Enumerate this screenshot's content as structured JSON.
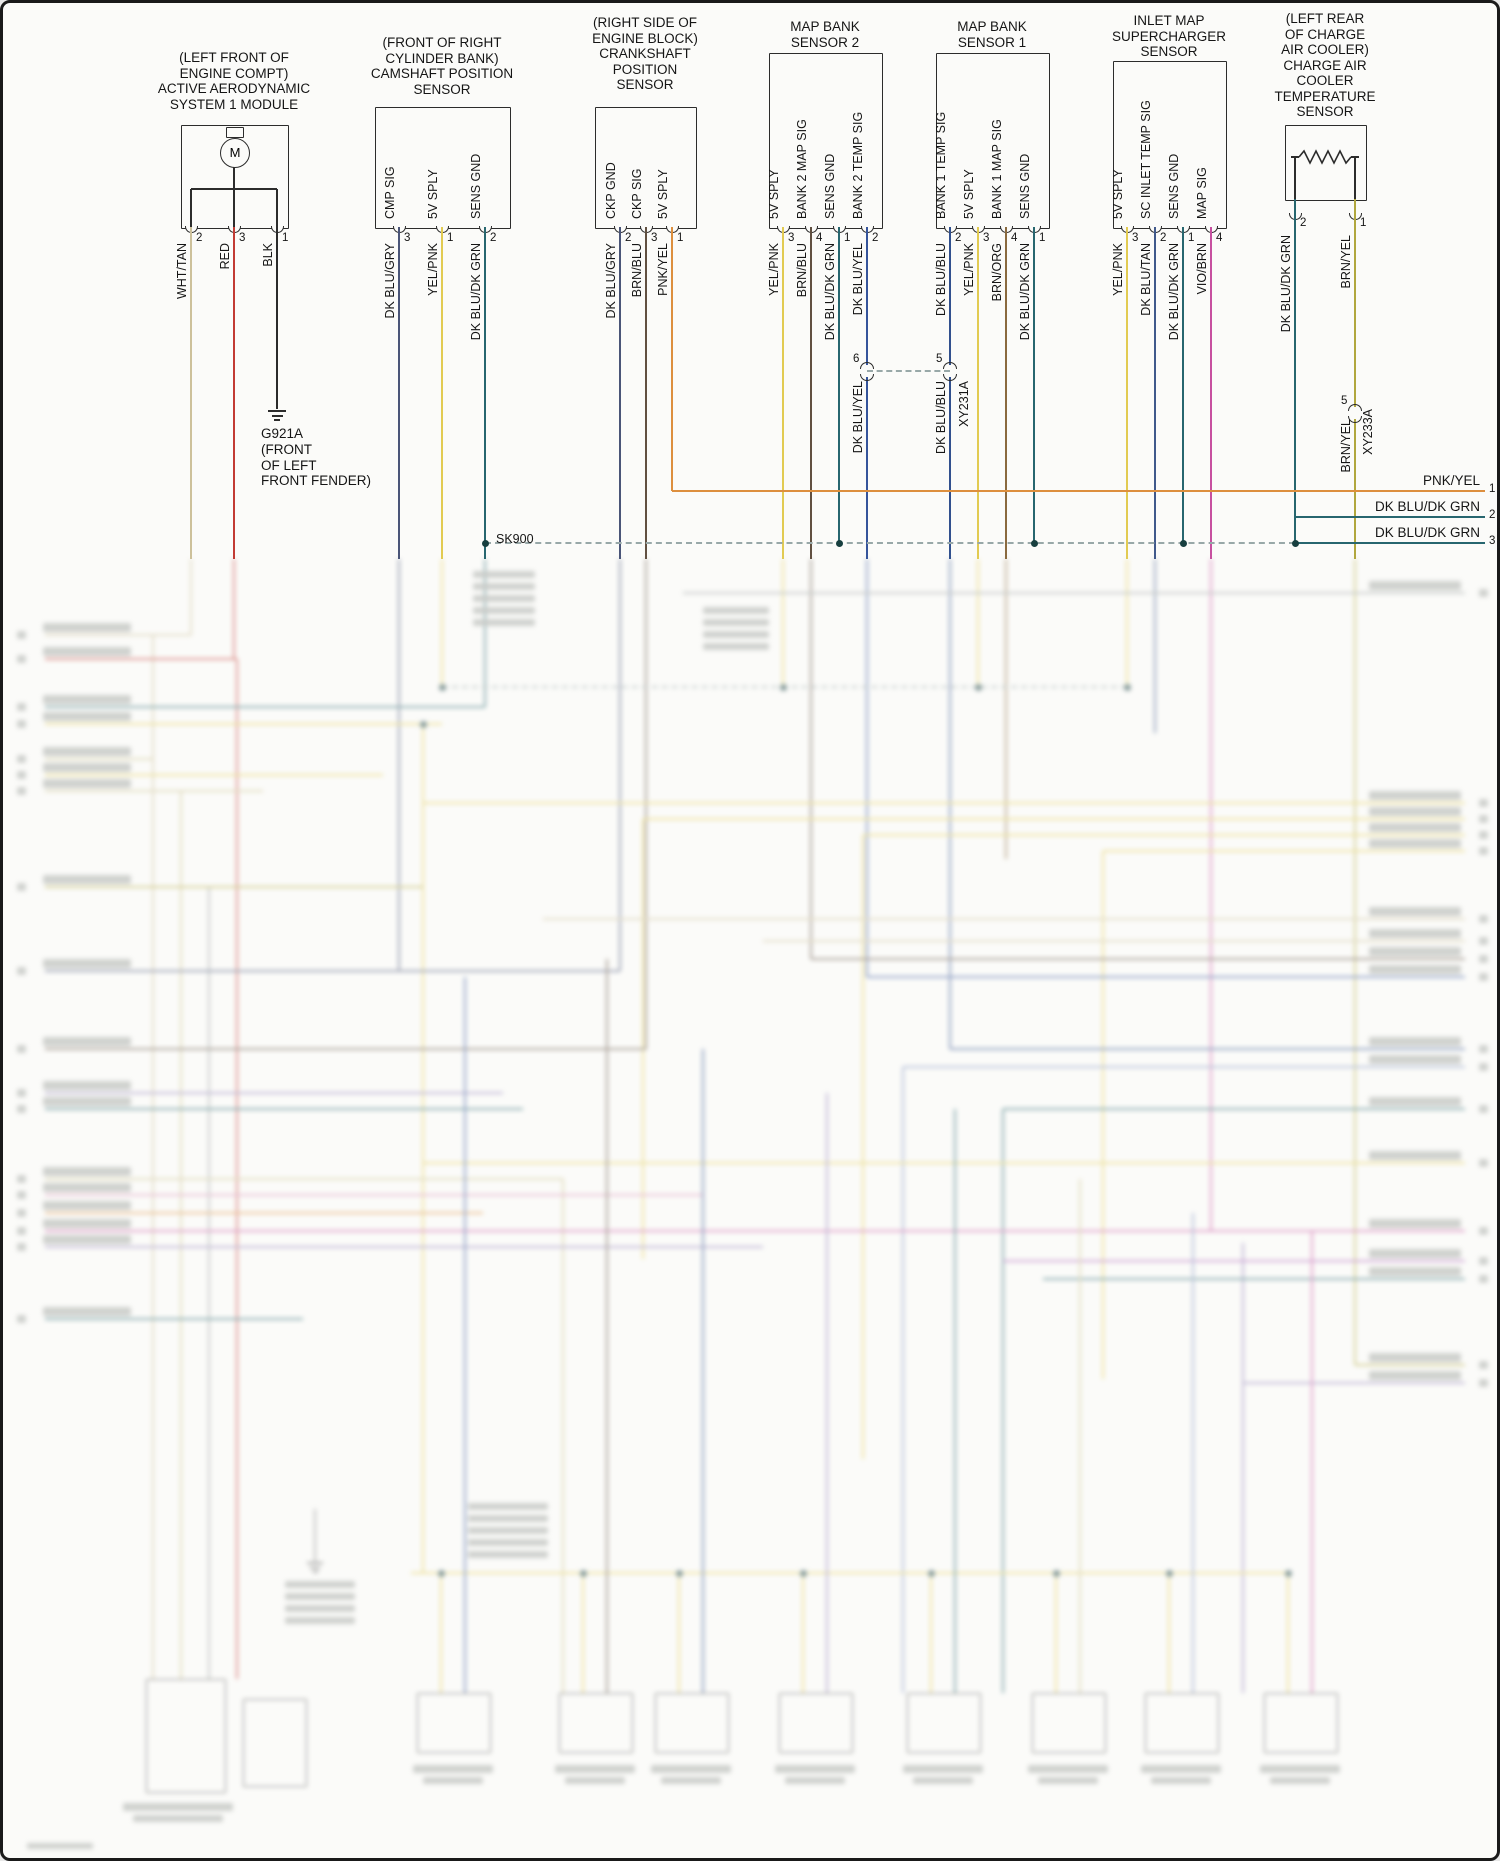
{
  "colors": {
    "WHT/TAN": "#cdc19b",
    "RED": "#c23b34",
    "BLK": "#2b2b2b",
    "DK BLU/GRY": "#4a5578",
    "YEL/PNK": "#e2cb52",
    "DK BLU/DK GRN": "#27666f",
    "BRN/BLU": "#615041",
    "PNK/YEL": "#dd8f3e",
    "DK BLU/YEL": "#35549b",
    "DK BLU/BLU": "#31508e",
    "BRN/ORG": "#8a6a3f",
    "DK BLU/TAN": "#40598b",
    "VIO/BRN": "#c750a0",
    "BRN/YEL": "#b1a73e"
  },
  "components": [
    {
      "id": "active-aero-module",
      "title_lines": [
        "(LEFT FRONT OF",
        "ENGINE COMPT)",
        "ACTIVE AERODYNAMIC",
        "SYSTEM 1 MODULE"
      ],
      "symbol_label": "M",
      "pins": [
        {
          "num": "2",
          "wire": "WHT/TAN"
        },
        {
          "num": "3",
          "wire": "RED"
        },
        {
          "num": "1",
          "wire": "BLK"
        }
      ]
    },
    {
      "id": "camshaft-position-sensor",
      "title_lines": [
        "(FRONT OF RIGHT",
        "CYLINDER BANK)",
        "CAMSHAFT POSITION",
        "SENSOR"
      ],
      "pins": [
        {
          "label": "CMP SIG",
          "num": "3",
          "wire": "DK BLU/GRY"
        },
        {
          "label": "5V SPLY",
          "num": "1",
          "wire": "YEL/PNK"
        },
        {
          "label": "SENS GND",
          "num": "2",
          "wire": "DK BLU/DK GRN"
        }
      ]
    },
    {
      "id": "crankshaft-position-sensor",
      "title_lines": [
        "(RIGHT SIDE OF",
        "ENGINE BLOCK)",
        "CRANKSHAFT",
        "POSITION",
        "SENSOR"
      ],
      "pins": [
        {
          "label": "CKP GND",
          "num": "2",
          "wire": "DK BLU/GRY"
        },
        {
          "label": "CKP SIG",
          "num": "3",
          "wire": "BRN/BLU"
        },
        {
          "label": "5V SPLY",
          "num": "1",
          "wire": "PNK/YEL"
        }
      ]
    },
    {
      "id": "map-bank-sensor-2",
      "title_lines": [
        "MAP BANK",
        "SENSOR 2"
      ],
      "pins": [
        {
          "label": "5V SPLY",
          "num": "3",
          "wire": "YEL/PNK"
        },
        {
          "label": "BANK 2 MAP SIG",
          "num": "4",
          "wire": "BRN/BLU"
        },
        {
          "label": "SENS GND",
          "num": "1",
          "wire": "DK BLU/DK GRN"
        },
        {
          "label": "BANK 2 TEMP SIG",
          "num": "2",
          "wire": "DK BLU/YEL"
        }
      ]
    },
    {
      "id": "map-bank-sensor-1",
      "title_lines": [
        "MAP BANK",
        "SENSOR 1"
      ],
      "pins": [
        {
          "label": "BANK 1 TEMP SIG",
          "num": "2",
          "wire": "DK BLU/BLU"
        },
        {
          "label": "5V SPLY",
          "num": "3",
          "wire": "YEL/PNK"
        },
        {
          "label": "BANK 1 MAP SIG",
          "num": "4",
          "wire": "BRN/ORG"
        },
        {
          "label": "SENS GND",
          "num": "1",
          "wire": "DK BLU/DK GRN"
        }
      ]
    },
    {
      "id": "inlet-map-supercharger-sensor",
      "title_lines": [
        "INLET MAP",
        "SUPERCHARGER",
        "SENSOR"
      ],
      "pins": [
        {
          "label": "5V SPLY",
          "num": "3",
          "wire": "YEL/PNK"
        },
        {
          "label": "SC INLET TEMP SIG",
          "num": "2",
          "wire": "DK BLU/TAN"
        },
        {
          "label": "SENS GND",
          "num": "1",
          "wire": "DK BLU/DK GRN"
        },
        {
          "label": "MAP SIG",
          "num": "4",
          "wire": "VIO/BRN"
        }
      ]
    },
    {
      "id": "charge-air-cooler-temp-sensor",
      "title_lines": [
        "(LEFT REAR",
        "OF CHARGE",
        "AIR COOLER)",
        "CHARGE AIR",
        "COOLER",
        "TEMPERATURE",
        "SENSOR"
      ],
      "pins": [
        {
          "num": "2",
          "wire": "DK BLU/DK GRN"
        },
        {
          "num": "1",
          "wire": "BRN/YEL"
        }
      ]
    }
  ],
  "ground": {
    "id": "G921A",
    "location_lines": [
      "(FRONT",
      "OF LEFT",
      "FRONT FENDER)"
    ]
  },
  "splice": {
    "id": "SK900"
  },
  "inline_connectors": [
    {
      "wire": "DK BLU/YEL",
      "pin": "6"
    },
    {
      "wire": "DK BLU/BLU",
      "pin": "5",
      "connector": "XY231A"
    },
    {
      "wire": "BRN/YEL",
      "pin": "5",
      "connector": "XY233A"
    }
  ],
  "right_rows": [
    {
      "num": "1",
      "label": "PNK/YEL"
    },
    {
      "num": "2",
      "label": "DK BLU/DK GRN"
    },
    {
      "num": "3",
      "label": "DK BLU/DK GRN"
    }
  ]
}
